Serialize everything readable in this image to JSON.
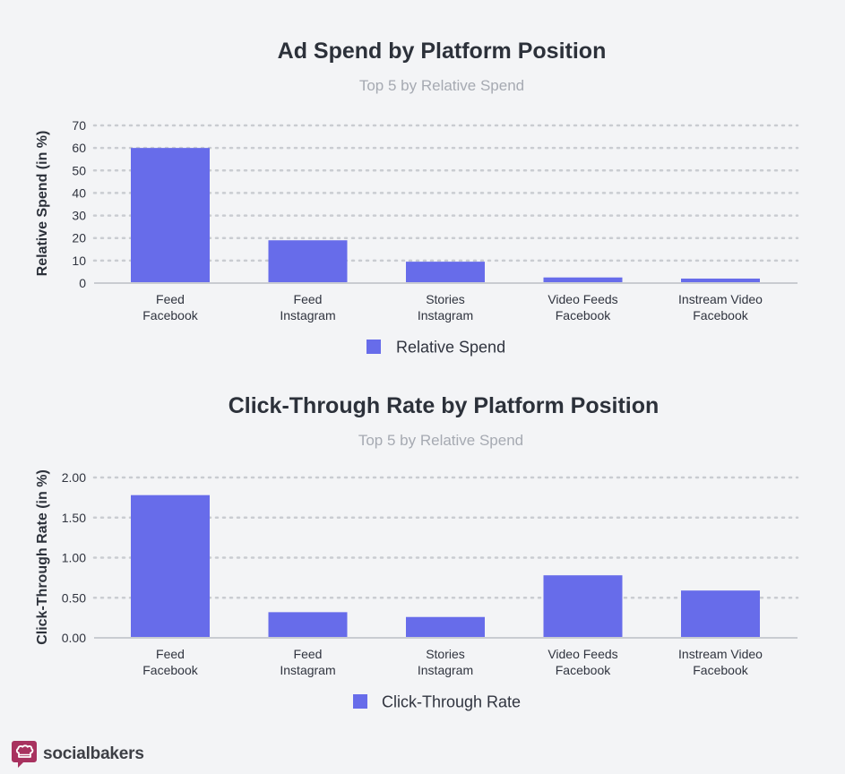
{
  "colors": {
    "bar": "#676cea",
    "background": "#f3f4f6"
  },
  "brand": {
    "name": "socialbakers",
    "icon": "socialbakers-chef-hat-logo",
    "color": "#a8325f"
  },
  "chart_data": [
    {
      "type": "bar",
      "title": "Ad Spend by Platform Position",
      "subtitle": "Top 5 by Relative Spend",
      "xlabel": "",
      "ylabel": "Relative Spend (in %)",
      "categories": [
        [
          "Feed",
          "Facebook"
        ],
        [
          "Feed",
          "Instagram"
        ],
        [
          "Stories",
          "Instagram"
        ],
        [
          "Video Feeds",
          "Facebook"
        ],
        [
          "Instream Video",
          "Facebook"
        ]
      ],
      "series": [
        {
          "name": "Relative Spend",
          "values": [
            60,
            19,
            9.5,
            2.5,
            2
          ]
        }
      ],
      "ylim": [
        0,
        70
      ],
      "yticks": [
        "0",
        "10",
        "20",
        "30",
        "40",
        "50",
        "60",
        "70"
      ],
      "grid": true,
      "legend": "bottom-center"
    },
    {
      "type": "bar",
      "title": "Click-Through Rate by Platform Position",
      "subtitle": "Top 5 by Relative Spend",
      "xlabel": "",
      "ylabel": "Click-Through Rate (in %)",
      "categories": [
        [
          "Feed",
          "Facebook"
        ],
        [
          "Feed",
          "Instagram"
        ],
        [
          "Stories",
          "Instagram"
        ],
        [
          "Video Feeds",
          "Facebook"
        ],
        [
          "Instream Video",
          "Facebook"
        ]
      ],
      "series": [
        {
          "name": "Click-Through Rate",
          "values": [
            1.78,
            0.32,
            0.26,
            0.78,
            0.59
          ]
        }
      ],
      "ylim": [
        0,
        2
      ],
      "yticks": [
        "0.00",
        "0.50",
        "1.00",
        "1.50",
        "2.00"
      ],
      "grid": true,
      "legend": "bottom-center"
    }
  ]
}
